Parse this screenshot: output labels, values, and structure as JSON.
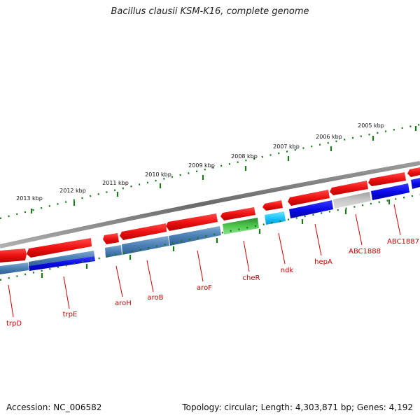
{
  "title": "Bacillus clausii KSM-K16, complete genome",
  "footer": {
    "accession": "Accession: NC_006582",
    "summary": "Topology: circular; Length: 4,303,871 bp; Genes: 4,192"
  },
  "colors": {
    "backbone": "#7a7a7a",
    "tick": "#1a7a1a",
    "forward_gene": "#ee1111",
    "label": "#cc0000"
  },
  "scale_labels": [
    "2005 kbp",
    "2006 kbp",
    "2007 kbp",
    "2008 kbp",
    "2009 kbp",
    "2010 kbp",
    "2011 kbp",
    "2012 kbp",
    "2013 kbp"
  ],
  "gene_labels": [
    "trpD",
    "trpE",
    "aroH",
    "aroB",
    "aroF",
    "cheR",
    "ndk",
    "hepA",
    "ABC1888",
    "ABC1887"
  ]
}
